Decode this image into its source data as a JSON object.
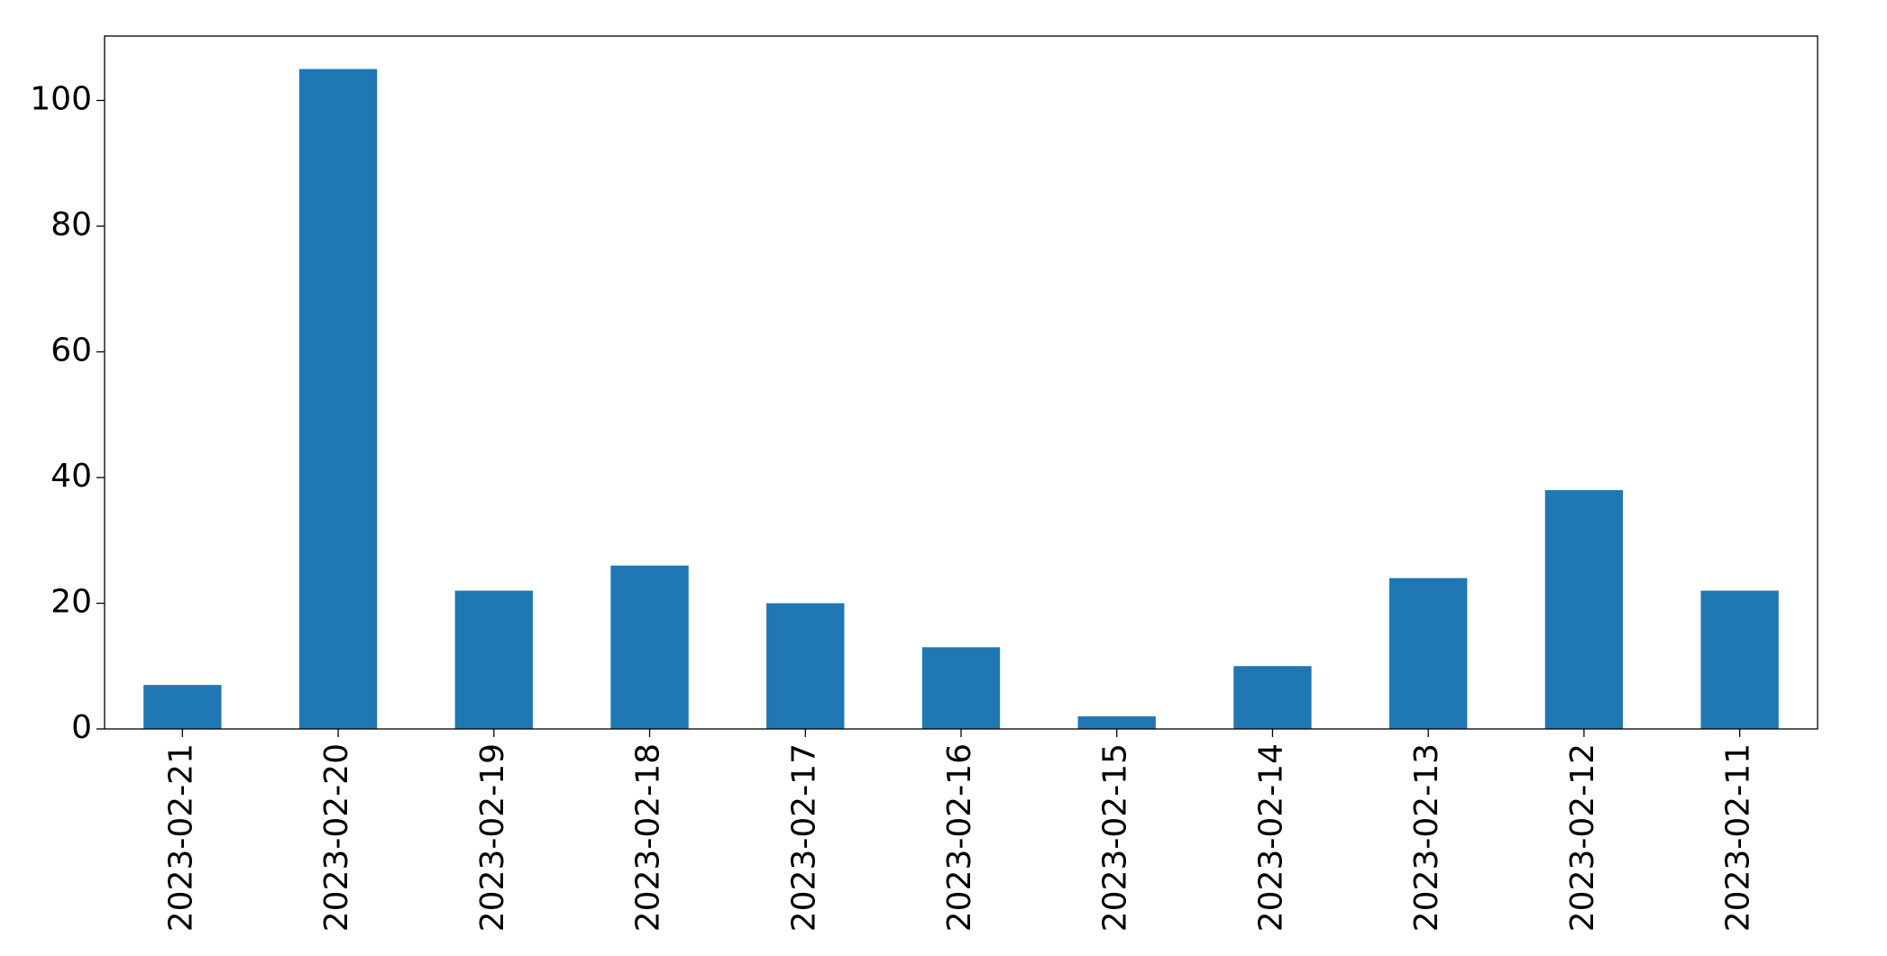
{
  "chart_data": {
    "type": "bar",
    "categories": [
      "2023-02-21",
      "2023-02-20",
      "2023-02-19",
      "2023-02-18",
      "2023-02-17",
      "2023-02-16",
      "2023-02-15",
      "2023-02-14",
      "2023-02-13",
      "2023-02-12",
      "2023-02-11"
    ],
    "values": [
      7,
      105,
      22,
      26,
      20,
      13,
      2,
      10,
      24,
      38,
      22
    ],
    "color": "#1f77b4",
    "ylim": [
      0,
      110.25
    ],
    "yticks": [
      0,
      20,
      40,
      60,
      80,
      100
    ],
    "grid": false
  }
}
